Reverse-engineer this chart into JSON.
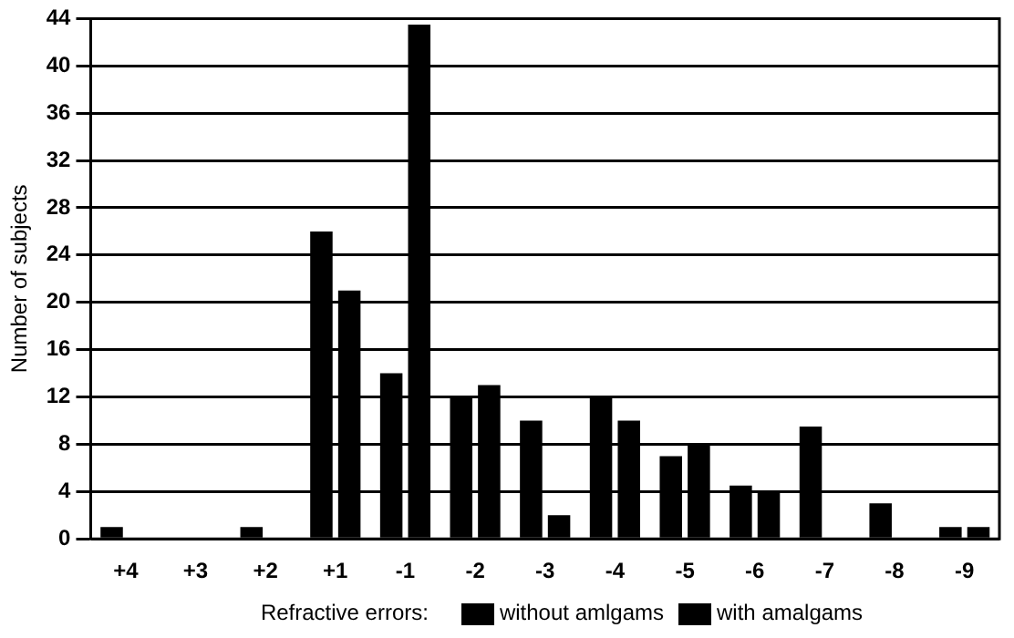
{
  "chart_data": {
    "type": "bar",
    "xlabel": null,
    "ylabel": "Number of subjects",
    "legend_title": "Refractive errors:",
    "categories": [
      "+4",
      "+3",
      "+2",
      "+1",
      "-1",
      "-2",
      "-3",
      "-4",
      "-5",
      "-6",
      "-7",
      "-8",
      "-9"
    ],
    "series": [
      {
        "name": "without amlgams",
        "color": "#000000",
        "values": [
          1,
          0,
          1,
          26,
          14,
          12,
          10,
          12,
          7,
          4.5,
          9.5,
          3,
          1
        ]
      },
      {
        "name": "with amalgams",
        "color": "#000000",
        "values": [
          0,
          0,
          0,
          21,
          43.5,
          13,
          2,
          10,
          8,
          4,
          0,
          0,
          1
        ]
      }
    ],
    "ylim": [
      0,
      44
    ],
    "yticks": [
      0,
      4,
      8,
      12,
      16,
      20,
      24,
      28,
      32,
      36,
      40,
      44
    ],
    "grid": "y",
    "legend": "bottom"
  }
}
